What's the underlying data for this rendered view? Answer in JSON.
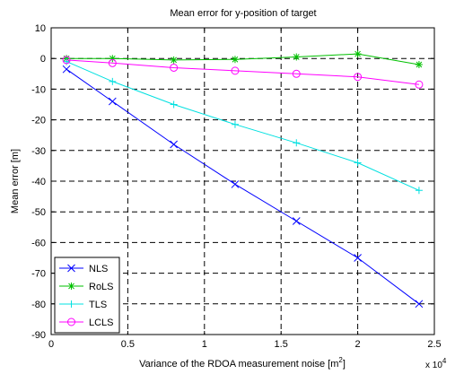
{
  "chart_data": {
    "type": "line",
    "title": "Mean error for y-position of target",
    "xlabel": "Variance of the RDOA measurement noise [m",
    "xlabel_superscript": "2",
    "xlabel_suffix": "]",
    "ylabel": "Mean error [m]",
    "x_multiplier_label": "x 10",
    "x_multiplier_exponent": "4",
    "xlim": [
      0,
      2.5
    ],
    "ylim": [
      -90,
      10
    ],
    "xticks": [
      0,
      0.5,
      1,
      1.5,
      2,
      2.5
    ],
    "yticks": [
      10,
      0,
      -10,
      -20,
      -30,
      -40,
      -50,
      -60,
      -70,
      -80,
      -90
    ],
    "grid": true,
    "grid_style": "dashed",
    "legend_position": "bottom-left",
    "x": [
      0.1,
      0.4,
      0.8,
      1.2,
      1.6,
      2.0,
      2.4
    ],
    "series": [
      {
        "name": "NLS",
        "color": "#0000ff",
        "marker": "x",
        "values": [
          -3.5,
          -14,
          -28,
          -41,
          -53,
          -65,
          -80
        ]
      },
      {
        "name": "RoLS",
        "color": "#00c000",
        "marker": "star",
        "values": [
          0,
          0,
          -0.5,
          -0.3,
          0.5,
          1.5,
          -2
        ]
      },
      {
        "name": "TLS",
        "color": "#00e0e0",
        "marker": "plus",
        "values": [
          -1,
          -7.5,
          -15,
          -21.5,
          -27.5,
          -34,
          -43
        ]
      },
      {
        "name": "LCLS",
        "color": "#ff00ff",
        "marker": "circle",
        "values": [
          -0.5,
          -1.5,
          -3,
          -4,
          -5,
          -6,
          -8.5
        ]
      }
    ]
  }
}
